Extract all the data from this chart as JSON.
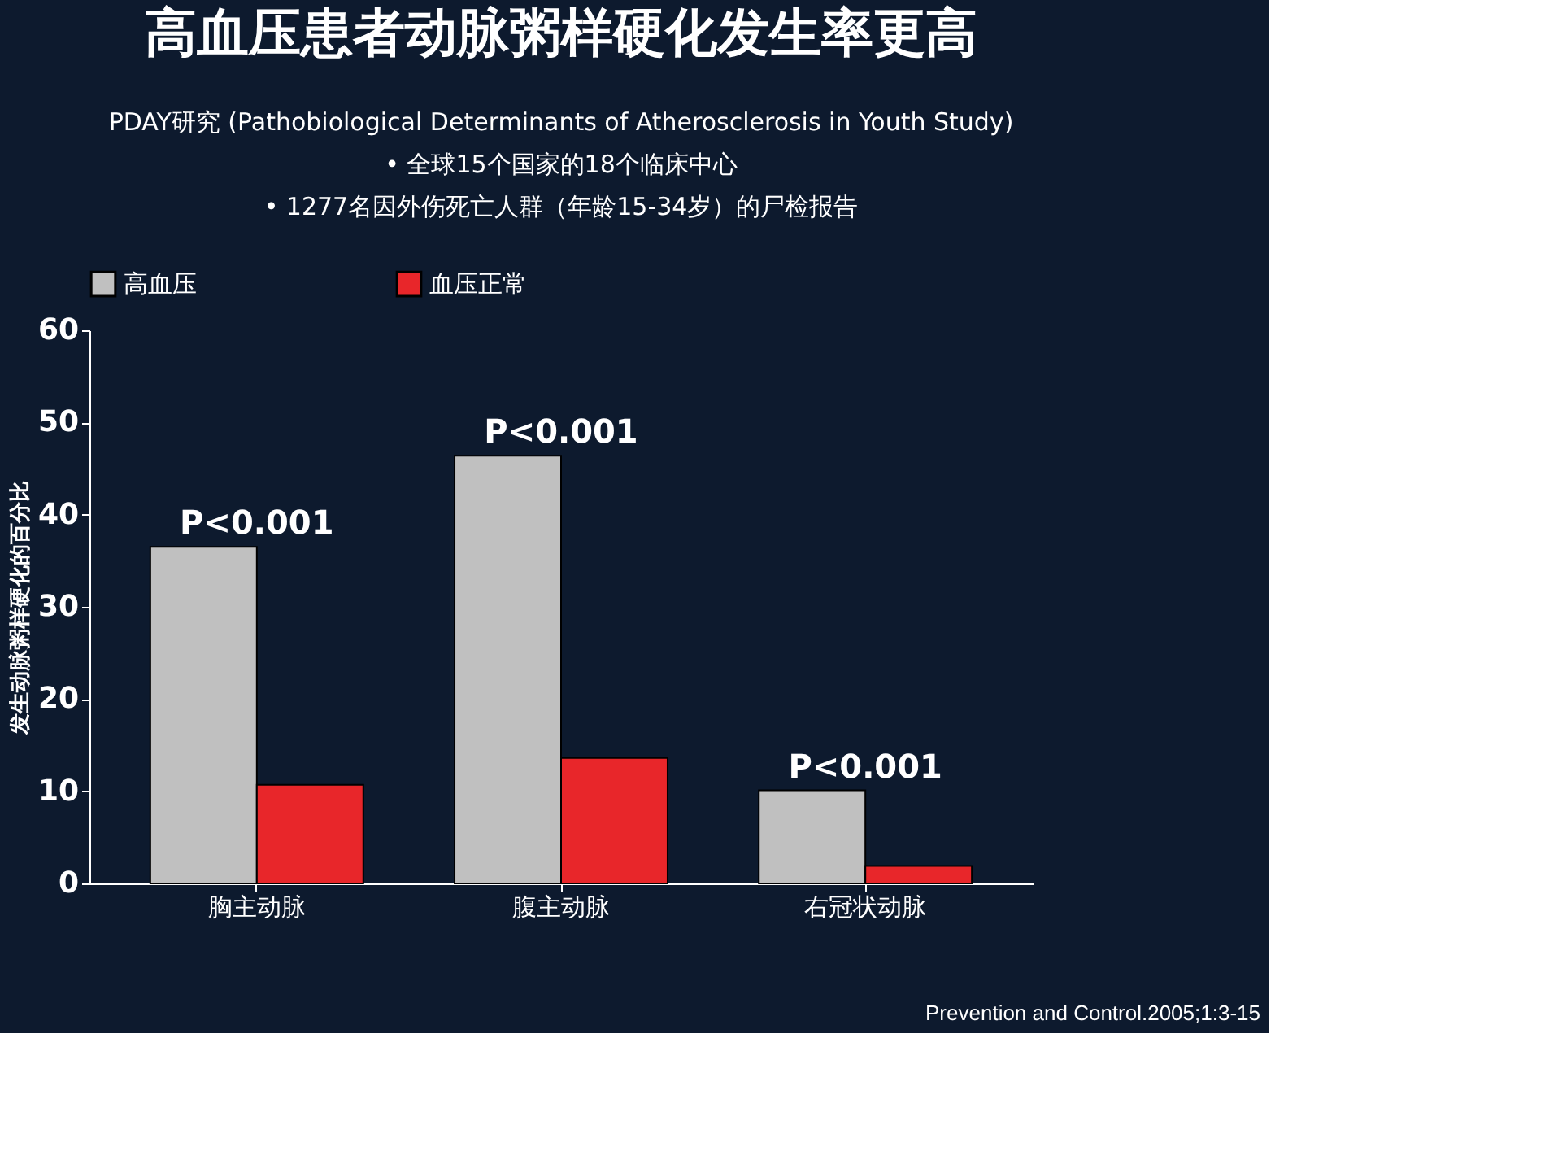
{
  "chart_data": {
    "type": "bar",
    "title": "高血压患者动脉粥样硬化发生率更高",
    "subtitle": [
      "PDAY研究 (Pathobiological Determinants of Atherosclerosis in Youth Study)",
      "• 全球15个国家的18个临床中心",
      "• 1277名因外伤死亡人群（年龄15-34岁）的尸检报告"
    ],
    "ylabel": "发生动脉粥样硬化的百分比",
    "categories": [
      "胸主动脉",
      "腹主动脉",
      "右冠状动脉"
    ],
    "series": [
      {
        "name": "高血压",
        "color": "#c0c0c0",
        "values": [
          36.5,
          46.4,
          10.1
        ]
      },
      {
        "name": "血压正常",
        "color": "#e8262a",
        "values": [
          10.7,
          13.6,
          1.9
        ]
      }
    ],
    "ylim": [
      0,
      60
    ],
    "yticks": [
      0,
      10,
      20,
      30,
      40,
      50,
      60
    ],
    "grid": false,
    "legend": "top",
    "annotations": [
      {
        "text": "P<0.001",
        "x": "胸主动脉",
        "y": 36.5
      },
      {
        "text": "P<0.001",
        "x": "腹主动脉",
        "y": 46.4
      },
      {
        "text": "P<0.001",
        "x": "右冠状动脉",
        "y": 10.1
      },
      "Prevention and Control.2005;1:3-15"
    ]
  }
}
